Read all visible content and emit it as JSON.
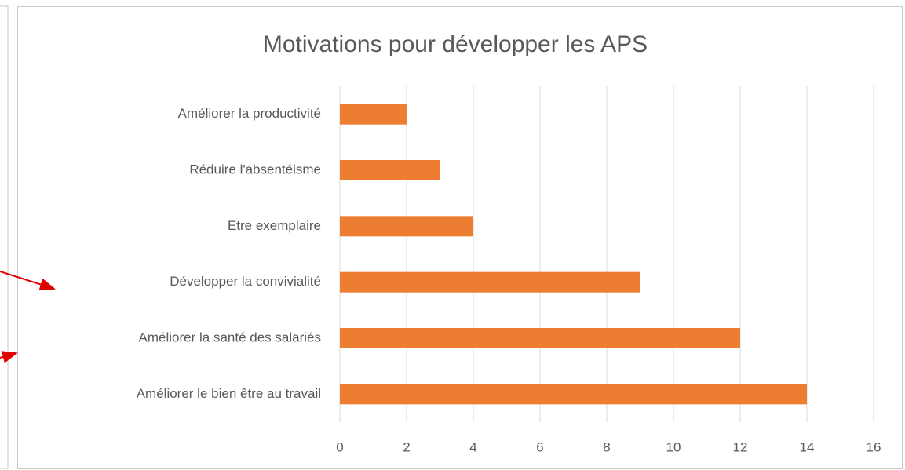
{
  "chart_data": {
    "type": "bar",
    "orientation": "horizontal",
    "title": "Motivations pour développer les APS",
    "categories": [
      "Améliorer la productivité",
      "Réduire l'absentéisme",
      "Etre exemplaire",
      "Développer la convivialité",
      "Améliorer la santé des salariés",
      "Améliorer le bien être au travail"
    ],
    "values": [
      2,
      3,
      4,
      9,
      12,
      14
    ],
    "color": "#ed7d31",
    "xlim": [
      0,
      16
    ],
    "xticks": [
      0,
      2,
      4,
      6,
      8,
      10,
      12,
      14,
      16
    ],
    "grid": true
  }
}
